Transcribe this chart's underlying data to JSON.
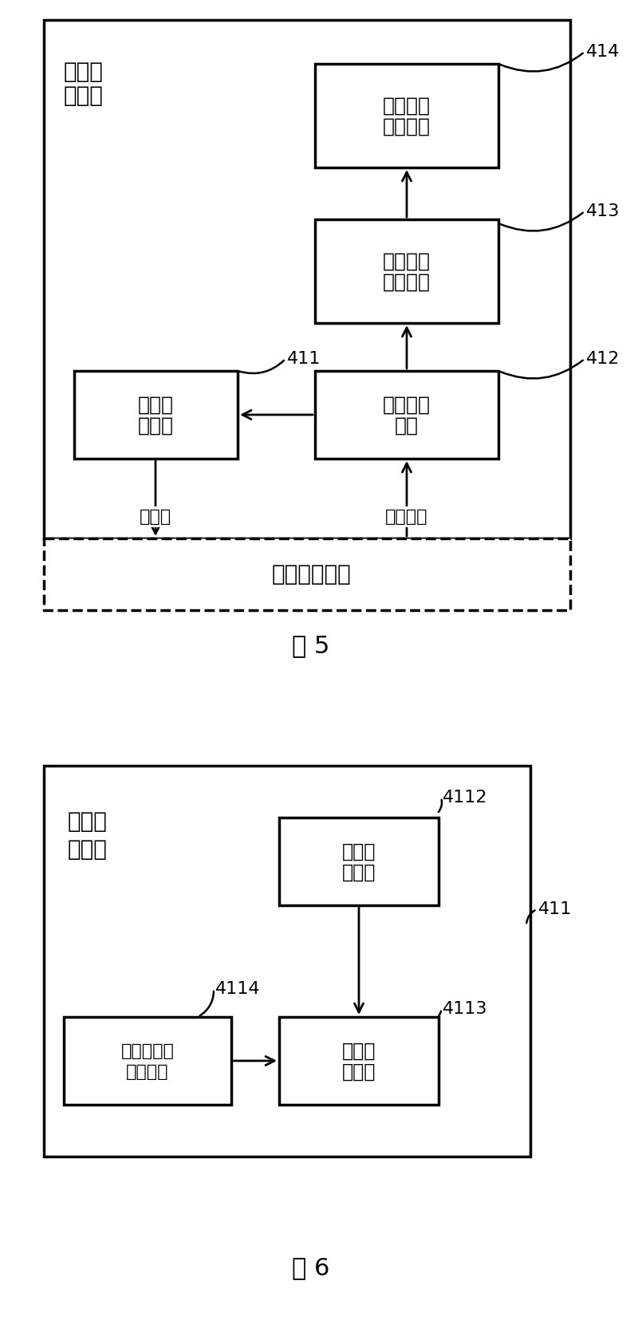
{
  "bg_color": "#ffffff",
  "fig1": {
    "title_label": "视频测\n试装置",
    "dashed_label": "视频业务系统",
    "box414_text": "视频质量\n分析模块",
    "box413_text": "视频质量\n测试模块",
    "box412_text": "信息反馈\n模块",
    "box411_text": "压力产\n生模块",
    "label414": "414",
    "label413": "413",
    "label412": "412",
    "label411": "411",
    "arrow_left_label": "视频流",
    "arrow_right_label": "反馈信号",
    "fig_label": "图 5"
  },
  "fig2": {
    "title_label": "压力产\n生模块",
    "box4112_text": "加压控\n制单元",
    "box4113_text": "加压执\n行单元",
    "box4114_text": "视频源文件\n获取单元",
    "label4112": "4112",
    "label4113": "4113",
    "label4114": "4114",
    "label411": "411",
    "fig_label": "图 6"
  }
}
